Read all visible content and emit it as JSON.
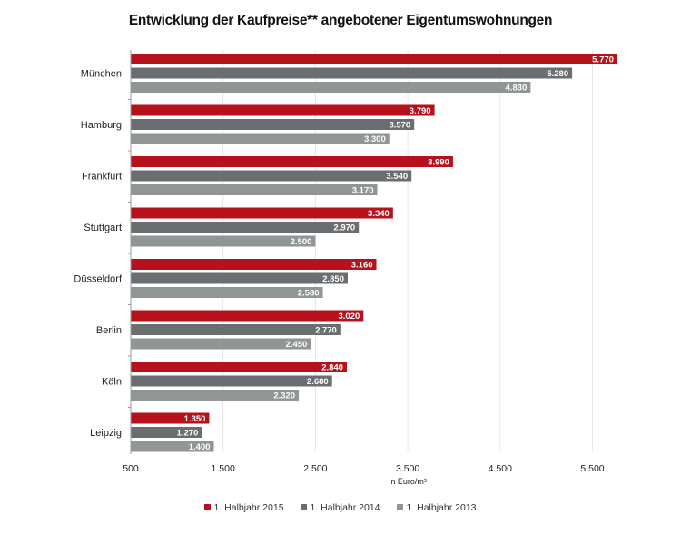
{
  "chart_data": {
    "type": "bar",
    "orientation": "horizontal",
    "title": "Entwicklung der Kaufpreise** angebotener Eigentumswohnungen",
    "xlabel": "in Euro/m²",
    "ylabel": "",
    "xlim": [
      500,
      5800
    ],
    "xticks": [
      500,
      1500,
      2500,
      3500,
      4500,
      5500
    ],
    "xtick_labels": [
      "500",
      "1.500",
      "2.500",
      "3.500",
      "4.500",
      "5.500"
    ],
    "grid": true,
    "legend_position": "bottom",
    "categories": [
      "München",
      "Hamburg",
      "Frankfurt",
      "Stuttgart",
      "Düsseldorf",
      "Berlin",
      "Köln",
      "Leipzig"
    ],
    "series": [
      {
        "name": "1. Halbjahr 2015",
        "color": "#b5121b",
        "values": [
          5770,
          3790,
          3990,
          3340,
          3160,
          3020,
          2840,
          1350
        ],
        "labels": [
          "5.770",
          "3.790",
          "3.990",
          "3.340",
          "3.160",
          "3.020",
          "2.840",
          "1.350"
        ]
      },
      {
        "name": "1. Halbjahr 2014",
        "color": "#6b6e70",
        "values": [
          5280,
          3570,
          3540,
          2970,
          2850,
          2770,
          2680,
          1270
        ],
        "labels": [
          "5.280",
          "3.570",
          "3.540",
          "2.970",
          "2.850",
          "2.770",
          "2.680",
          "1.270"
        ]
      },
      {
        "name": "1. Halbjahr 2013",
        "color": "#8f9694",
        "values": [
          4830,
          3300,
          3170,
          2500,
          2580,
          2450,
          2320,
          1400
        ],
        "labels": [
          "4.830",
          "3.300",
          "3.170",
          "2.500",
          "2.580",
          "2.450",
          "2.320",
          "1.400"
        ]
      }
    ]
  }
}
